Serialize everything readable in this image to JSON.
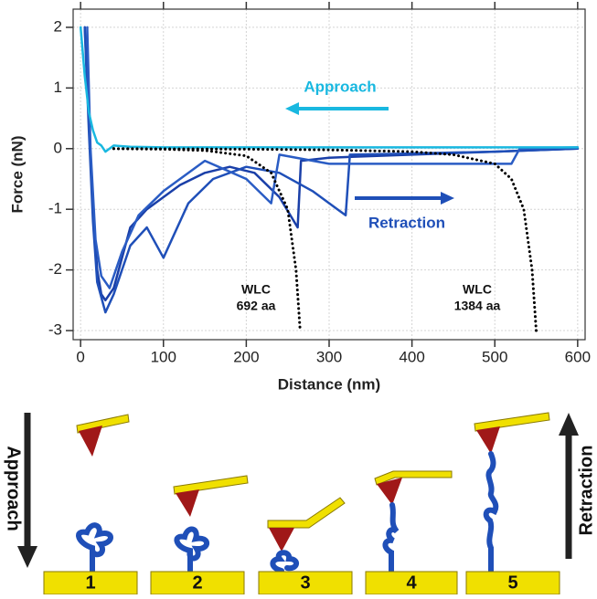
{
  "chart_data": {
    "type": "line",
    "x_label": "Distance (nm)",
    "y_label": "Force (nN)",
    "xlim": [
      -9,
      609
    ],
    "ylim": [
      -3.15,
      2.3
    ],
    "xticks": [
      0,
      100,
      200,
      300,
      400,
      500,
      600
    ],
    "yticks": [
      -3,
      -2,
      -1,
      0,
      1,
      2
    ],
    "grid": true,
    "annotations": [
      "Approach",
      "Retraction",
      "WLC",
      "692 aa",
      "WLC",
      "1384 aa"
    ],
    "series": [
      {
        "color": "#1a3fa8",
        "style": "solid",
        "x": [
          5,
          10,
          15,
          20,
          25,
          30,
          40,
          50,
          60,
          80,
          100,
          120,
          150,
          180,
          210,
          240,
          262,
          266,
          300,
          400,
          500,
          600
        ],
        "values": [
          2,
          0.5,
          -1,
          -2,
          -2.4,
          -2.5,
          -2.3,
          -1.8,
          -1.3,
          -1.0,
          -0.8,
          -0.6,
          -0.4,
          -0.3,
          -0.4,
          -0.8,
          -1.3,
          -0.2,
          -0.15,
          -0.1,
          -0.05,
          0
        ]
      },
      {
        "color": "#1f4fb8",
        "style": "solid",
        "x": [
          5,
          10,
          15,
          20,
          30,
          40,
          60,
          80,
          100,
          130,
          160,
          200,
          240,
          280,
          310,
          320,
          325,
          400,
          500,
          600
        ],
        "values": [
          2,
          0.3,
          -1.2,
          -2.2,
          -2.7,
          -2.4,
          -1.6,
          -1.3,
          -1.8,
          -0.9,
          -0.5,
          -0.3,
          -0.4,
          -0.7,
          -1.0,
          -1.1,
          -0.1,
          -0.08,
          -0.05,
          0
        ]
      },
      {
        "color": "#2a5cc4",
        "style": "solid",
        "x": [
          8,
          12,
          18,
          25,
          35,
          50,
          70,
          100,
          150,
          200,
          230,
          240,
          300,
          400,
          500,
          520,
          530,
          600
        ],
        "values": [
          2,
          0,
          -1.5,
          -2.1,
          -2.3,
          -1.7,
          -1.1,
          -0.7,
          -0.2,
          -0.5,
          -0.9,
          -0.1,
          -0.25,
          -0.25,
          -0.25,
          -0.25,
          0,
          0.02
        ]
      },
      {
        "color": "#19b8e0",
        "style": "solid",
        "x": [
          0,
          5,
          10,
          15,
          20,
          25,
          30,
          40,
          60,
          100,
          200,
          300,
          400,
          500,
          600
        ],
        "values": [
          2,
          1.2,
          0.6,
          0.3,
          0.1,
          0.05,
          -0.05,
          0.05,
          0.03,
          0.02,
          0.02,
          0.02,
          0.02,
          0.02,
          0.02
        ]
      },
      {
        "color": "#000000",
        "style": "dotted",
        "x": [
          40,
          100,
          150,
          200,
          230,
          250,
          260,
          265
        ],
        "values": [
          0,
          -0.01,
          -0.03,
          -0.12,
          -0.4,
          -1.0,
          -2.0,
          -3.0
        ]
      },
      {
        "color": "#000000",
        "style": "dotted",
        "x": [
          40,
          200,
          300,
          400,
          450,
          500,
          520,
          535,
          545,
          550
        ],
        "values": [
          0,
          -0.01,
          -0.02,
          -0.05,
          -0.1,
          -0.25,
          -0.5,
          -1.0,
          -2.0,
          -3.0
        ]
      }
    ]
  },
  "diagram": {
    "approach_label": "Approach",
    "retraction_label": "Retraction",
    "steps": [
      "1",
      "2",
      "3",
      "4",
      "5"
    ]
  }
}
